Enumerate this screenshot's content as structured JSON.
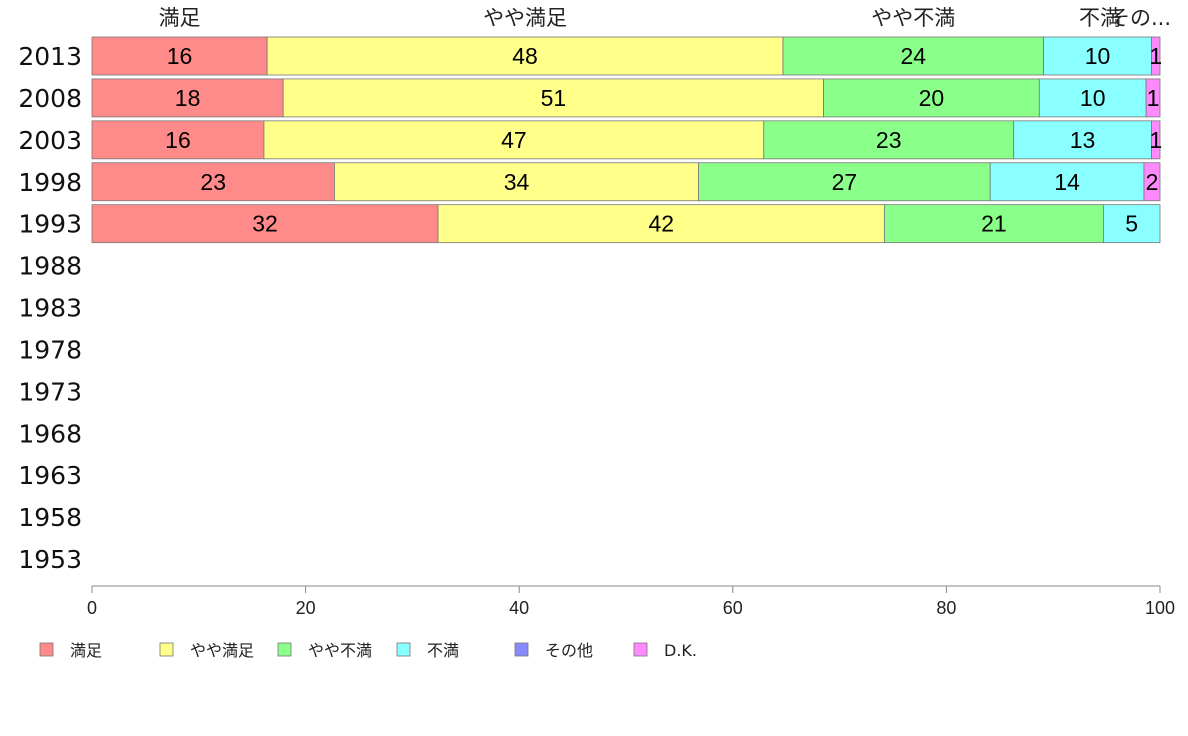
{
  "chart_data": {
    "type": "bar",
    "orientation": "horizontal",
    "stacked": true,
    "series_names": [
      "満足",
      "やや満足",
      "やや不満",
      "不満",
      "その他",
      "D.K."
    ],
    "top_labels": [
      "満足",
      "やや満足",
      "やや不満",
      "不満",
      "その..."
    ],
    "colors": [
      "#ff8a8a",
      "#ffff8a",
      "#8aff8a",
      "#8affff",
      "#8a8aff",
      "#ff8aff"
    ],
    "categories": [
      "2013",
      "2008",
      "2003",
      "1998",
      "1993",
      "1988",
      "1983",
      "1978",
      "1973",
      "1968",
      "1963",
      "1958",
      "1953"
    ],
    "rows": [
      {
        "year": "2013",
        "values": [
          16.4,
          48.3,
          24.4,
          10.1,
          0,
          0.8
        ],
        "labels": [
          "16",
          "48",
          "24",
          "10",
          "",
          "1"
        ]
      },
      {
        "year": "2008",
        "values": [
          17.9,
          50.6,
          20.2,
          10.0,
          0,
          1.3
        ],
        "labels": [
          "18",
          "51",
          "20",
          "10",
          "",
          "1"
        ]
      },
      {
        "year": "2003",
        "values": [
          16.1,
          46.8,
          23.4,
          12.9,
          0,
          0.8
        ],
        "labels": [
          "16",
          "47",
          "23",
          "13",
          "",
          "1"
        ]
      },
      {
        "year": "1998",
        "values": [
          22.7,
          34.1,
          27.3,
          14.4,
          0,
          1.5
        ],
        "labels": [
          "23",
          "34",
          "27",
          "14",
          "",
          "2"
        ]
      },
      {
        "year": "1993",
        "values": [
          32.4,
          41.8,
          20.5,
          5.3,
          0,
          0
        ],
        "labels": [
          "32",
          "42",
          "21",
          "5",
          "",
          ""
        ]
      }
    ],
    "x_ticks": [
      "0",
      "20",
      "40",
      "60",
      "80",
      "100"
    ],
    "xlim": [
      0,
      100
    ],
    "grid": false,
    "legend_position": "bottom"
  }
}
